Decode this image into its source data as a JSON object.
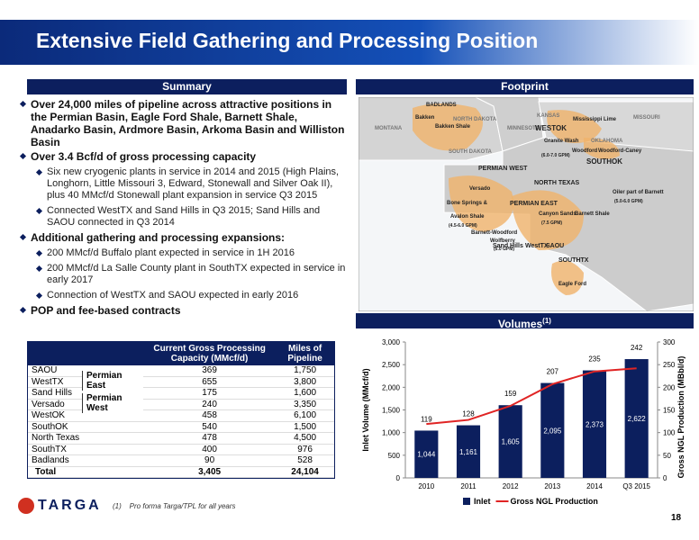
{
  "header": {
    "title": "Extensive Field Gathering and Processing Position"
  },
  "summary": {
    "heading": "Summary",
    "bullets": [
      {
        "text": "Over 24,000 miles of pipeline across attractive positions in the Permian Basin, Eagle Ford Shale, Barnett Shale, Anadarko Basin, Ardmore Basin, Arkoma Basin and Williston Basin"
      },
      {
        "text": "Over 3.4 Bcf/d of gross processing capacity",
        "sub": [
          "Six new cryogenic plants in service in 2014 and 2015 (High Plains, Longhorn, Little Missouri 3, Edward, Stonewall and Silver Oak II), plus 40 MMcf/d Stonewall plant expansion in service Q3 2015",
          "Connected WestTX and Sand Hills in Q3 2015; Sand Hills and SAOU connected in Q3 2014"
        ]
      },
      {
        "text": "Additional gathering and processing expansions:",
        "sub": [
          "200 MMcf/d Buffalo plant expected in service in 1H 2016",
          "200 MMcf/d La Salle County plant in SouthTX expected in service in early 2017",
          "Connection of WestTX and SAOU expected in early 2016"
        ]
      },
      {
        "text": "POP and fee-based contracts"
      }
    ]
  },
  "table": {
    "header": [
      "Current Gross Processing Capacity (MMcf/d)",
      "Miles of Pipeline"
    ],
    "groups": [
      "Permian East",
      "Permian West"
    ],
    "rows": [
      [
        "SAOU",
        "369",
        "1,750"
      ],
      [
        "WestTX",
        "655",
        "3,800"
      ],
      [
        "Sand Hills",
        "175",
        "1,600"
      ],
      [
        "Versado",
        "240",
        "3,350"
      ],
      [
        "WestOK",
        "458",
        "6,100"
      ],
      [
        "SouthOK",
        "540",
        "1,500"
      ],
      [
        "North Texas",
        "478",
        "4,500"
      ],
      [
        "SouthTX",
        "400",
        "976"
      ],
      [
        "Badlands",
        "90",
        "528"
      ]
    ],
    "total": [
      "Total",
      "3,405",
      "24,104"
    ]
  },
  "footprint": {
    "heading": "Footprint",
    "map_labels": [
      "BADLANDS",
      "Bakken",
      "Bakken Shale",
      "NORTH DAKOTA",
      "MONTANA",
      "MINNESOTA",
      "SOUTH DAKOTA",
      "KANSAS",
      "MISSOURI",
      "Mississippi Lime",
      "WESTOK",
      "Granite Wash",
      "(6.0-7.0 GPM)",
      "OKLAHOMA",
      "Woodford",
      "Woodford-Caney",
      "SOUTHOK",
      "PERMIAN WEST",
      "NORTH TEXAS",
      "Versado",
      "Bone Springs &",
      "Avalon Shale",
      "(4.5-6.0 GPM)",
      "PERMIAN EAST",
      "Canyon Sands",
      "(7.5 GPM)",
      "Barnett Shale",
      "Barnett-Woodford",
      "Wolfberry",
      "(6.0 GPM)",
      "Oiler part of Barnett",
      "(5.0-6.0 GPM)",
      "Sand Hills",
      "WestTX",
      "SAOU",
      "SOUTHTX",
      "Eagle Ford"
    ]
  },
  "chart_data": {
    "type": "bar",
    "title": "Volumes",
    "title_note": "(1)",
    "categories": [
      "2010",
      "2011",
      "2012",
      "2013",
      "2014",
      "Q3 2015"
    ],
    "series": [
      {
        "name": "Inlet",
        "color": "#0c1f5e",
        "values": [
          1044,
          1161,
          1605,
          2095,
          2373,
          2622
        ],
        "value_labels": [
          "1,044",
          "1,161",
          "1,605",
          "2,095",
          "2,373",
          "2,622"
        ]
      },
      {
        "name": "Gross NGL Production",
        "color": "#e02424",
        "type": "line",
        "axis": "y2",
        "values": [
          119,
          128,
          159,
          207,
          235,
          242
        ]
      }
    ],
    "y_label": "Inlet Volume (MMcf/d)",
    "y2_label": "Gross NGL Production (MBbl/d)",
    "ylim": [
      0,
      3000
    ],
    "yticks": [
      0,
      500,
      {
        "value": 1000,
        "label": "1,000"
      },
      {
        "value": 1500,
        "label": "1,500"
      },
      {
        "value": 2000,
        "label": "2,000"
      },
      {
        "value": 2500,
        "label": "2,500"
      },
      {
        "value": 3000,
        "label": "3,000"
      }
    ],
    "y2lim": [
      0,
      300
    ],
    "y2ticks": [
      0,
      50,
      100,
      150,
      200,
      250,
      300
    ],
    "legend": "bottom"
  },
  "footnote": {
    "marker": "(1)",
    "text": "Pro forma Targa/TPL for all years"
  },
  "logo": "TARGA",
  "page_number": "18"
}
